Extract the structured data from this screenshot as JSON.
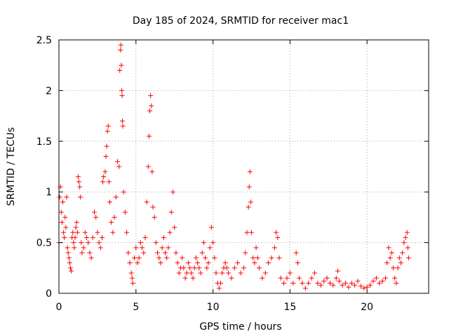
{
  "chart_data": {
    "type": "scatter",
    "title": "Day 185 of 2024, SRMTID for receiver mac1",
    "xlabel": "GPS time / hours",
    "ylabel": "SRMTID / TECUs",
    "xlim": [
      0,
      24
    ],
    "ylim": [
      0,
      2.5
    ],
    "xticks": [
      0,
      5,
      10,
      15,
      20
    ],
    "xtick_labels": [
      "0",
      "5",
      "10",
      "15",
      "20"
    ],
    "yticks": [
      0,
      0.5,
      1,
      1.5,
      2,
      2.5
    ],
    "ytick_labels": [
      "0",
      "0.5",
      "1",
      "1.5",
      "2",
      "2.5"
    ],
    "grid": true,
    "marker": "plus",
    "series_color": "#ff0000",
    "series": [
      {
        "name": "mac1",
        "points": [
          [
            0.0,
            0.5
          ],
          [
            0.05,
            0.95
          ],
          [
            0.1,
            1.05
          ],
          [
            0.15,
            0.8
          ],
          [
            0.2,
            0.7
          ],
          [
            0.25,
            0.9
          ],
          [
            0.3,
            0.6
          ],
          [
            0.35,
            0.55
          ],
          [
            0.4,
            0.75
          ],
          [
            0.45,
            0.65
          ],
          [
            0.5,
            0.95
          ],
          [
            0.55,
            0.45
          ],
          [
            0.6,
            0.4
          ],
          [
            0.65,
            0.35
          ],
          [
            0.7,
            0.3
          ],
          [
            0.75,
            0.25
          ],
          [
            0.8,
            0.22
          ],
          [
            0.85,
            0.55
          ],
          [
            0.9,
            0.6
          ],
          [
            0.95,
            0.5
          ],
          [
            1.0,
            0.45
          ],
          [
            1.05,
            0.55
          ],
          [
            1.1,
            0.65
          ],
          [
            1.15,
            0.7
          ],
          [
            1.2,
            0.6
          ],
          [
            1.25,
            1.15
          ],
          [
            1.3,
            1.1
          ],
          [
            1.35,
            1.05
          ],
          [
            1.4,
            0.95
          ],
          [
            1.45,
            0.5
          ],
          [
            1.5,
            0.4
          ],
          [
            1.6,
            0.45
          ],
          [
            1.7,
            0.6
          ],
          [
            1.8,
            0.55
          ],
          [
            1.9,
            0.5
          ],
          [
            2.0,
            0.4
          ],
          [
            2.1,
            0.35
          ],
          [
            2.2,
            0.55
          ],
          [
            2.3,
            0.8
          ],
          [
            2.4,
            0.75
          ],
          [
            2.5,
            0.6
          ],
          [
            2.6,
            0.5
          ],
          [
            2.7,
            0.45
          ],
          [
            2.8,
            0.55
          ],
          [
            2.85,
            1.1
          ],
          [
            2.9,
            1.15
          ],
          [
            3.0,
            1.2
          ],
          [
            3.05,
            1.35
          ],
          [
            3.1,
            1.45
          ],
          [
            3.15,
            1.6
          ],
          [
            3.2,
            1.65
          ],
          [
            3.25,
            1.1
          ],
          [
            3.3,
            0.9
          ],
          [
            3.4,
            0.7
          ],
          [
            3.5,
            0.6
          ],
          [
            3.6,
            0.75
          ],
          [
            3.7,
            0.95
          ],
          [
            3.8,
            1.3
          ],
          [
            3.9,
            1.25
          ],
          [
            3.95,
            2.2
          ],
          [
            4.0,
            2.4
          ],
          [
            4.02,
            2.45
          ],
          [
            4.05,
            2.25
          ],
          [
            4.08,
            2.0
          ],
          [
            4.1,
            1.95
          ],
          [
            4.12,
            1.7
          ],
          [
            4.15,
            1.65
          ],
          [
            4.2,
            1.0
          ],
          [
            4.3,
            0.8
          ],
          [
            4.4,
            0.6
          ],
          [
            4.5,
            0.4
          ],
          [
            4.6,
            0.3
          ],
          [
            4.7,
            0.2
          ],
          [
            4.75,
            0.15
          ],
          [
            4.8,
            0.1
          ],
          [
            4.9,
            0.35
          ],
          [
            5.0,
            0.45
          ],
          [
            5.1,
            0.3
          ],
          [
            5.2,
            0.35
          ],
          [
            5.3,
            0.5
          ],
          [
            5.4,
            0.45
          ],
          [
            5.5,
            0.4
          ],
          [
            5.6,
            0.55
          ],
          [
            5.7,
            0.9
          ],
          [
            5.8,
            1.25
          ],
          [
            5.85,
            1.55
          ],
          [
            5.9,
            1.8
          ],
          [
            5.95,
            1.95
          ],
          [
            6.0,
            1.85
          ],
          [
            6.05,
            1.2
          ],
          [
            6.1,
            0.85
          ],
          [
            6.2,
            0.75
          ],
          [
            6.3,
            0.5
          ],
          [
            6.4,
            0.4
          ],
          [
            6.5,
            0.35
          ],
          [
            6.6,
            0.3
          ],
          [
            6.7,
            0.45
          ],
          [
            6.8,
            0.55
          ],
          [
            6.9,
            0.4
          ],
          [
            7.0,
            0.35
          ],
          [
            7.1,
            0.45
          ],
          [
            7.2,
            0.6
          ],
          [
            7.3,
            0.8
          ],
          [
            7.4,
            1.0
          ],
          [
            7.5,
            0.65
          ],
          [
            7.6,
            0.4
          ],
          [
            7.7,
            0.3
          ],
          [
            7.8,
            0.2
          ],
          [
            7.9,
            0.25
          ],
          [
            8.0,
            0.35
          ],
          [
            8.1,
            0.25
          ],
          [
            8.2,
            0.15
          ],
          [
            8.3,
            0.2
          ],
          [
            8.4,
            0.3
          ],
          [
            8.5,
            0.25
          ],
          [
            8.6,
            0.2
          ],
          [
            8.7,
            0.15
          ],
          [
            8.8,
            0.25
          ],
          [
            8.9,
            0.35
          ],
          [
            9.0,
            0.3
          ],
          [
            9.1,
            0.25
          ],
          [
            9.2,
            0.2
          ],
          [
            9.3,
            0.4
          ],
          [
            9.4,
            0.5
          ],
          [
            9.5,
            0.35
          ],
          [
            9.6,
            0.25
          ],
          [
            9.7,
            0.3
          ],
          [
            9.8,
            0.45
          ],
          [
            9.9,
            0.65
          ],
          [
            10.0,
            0.5
          ],
          [
            10.1,
            0.35
          ],
          [
            10.2,
            0.2
          ],
          [
            10.3,
            0.1
          ],
          [
            10.4,
            0.05
          ],
          [
            10.5,
            0.1
          ],
          [
            10.6,
            0.2
          ],
          [
            10.7,
            0.25
          ],
          [
            10.8,
            0.3
          ],
          [
            10.9,
            0.25
          ],
          [
            11.0,
            0.2
          ],
          [
            11.2,
            0.15
          ],
          [
            11.4,
            0.25
          ],
          [
            11.6,
            0.3
          ],
          [
            11.8,
            0.2
          ],
          [
            12.0,
            0.25
          ],
          [
            12.1,
            0.4
          ],
          [
            12.2,
            0.6
          ],
          [
            12.3,
            0.85
          ],
          [
            12.35,
            1.05
          ],
          [
            12.4,
            1.2
          ],
          [
            12.45,
            0.9
          ],
          [
            12.5,
            0.6
          ],
          [
            12.6,
            0.35
          ],
          [
            12.7,
            0.3
          ],
          [
            12.8,
            0.45
          ],
          [
            12.9,
            0.35
          ],
          [
            13.0,
            0.25
          ],
          [
            13.2,
            0.15
          ],
          [
            13.4,
            0.2
          ],
          [
            13.6,
            0.3
          ],
          [
            13.8,
            0.35
          ],
          [
            14.0,
            0.45
          ],
          [
            14.1,
            0.6
          ],
          [
            14.2,
            0.55
          ],
          [
            14.3,
            0.35
          ],
          [
            14.4,
            0.15
          ],
          [
            14.6,
            0.1
          ],
          [
            14.8,
            0.15
          ],
          [
            15.0,
            0.2
          ],
          [
            15.2,
            0.1
          ],
          [
            15.4,
            0.4
          ],
          [
            15.5,
            0.3
          ],
          [
            15.6,
            0.15
          ],
          [
            15.8,
            0.1
          ],
          [
            16.0,
            0.05
          ],
          [
            16.2,
            0.1
          ],
          [
            16.4,
            0.15
          ],
          [
            16.6,
            0.2
          ],
          [
            16.8,
            0.1
          ],
          [
            17.0,
            0.08
          ],
          [
            17.2,
            0.12
          ],
          [
            17.4,
            0.15
          ],
          [
            17.6,
            0.1
          ],
          [
            17.8,
            0.08
          ],
          [
            18.0,
            0.15
          ],
          [
            18.1,
            0.22
          ],
          [
            18.2,
            0.12
          ],
          [
            18.4,
            0.08
          ],
          [
            18.6,
            0.1
          ],
          [
            18.8,
            0.06
          ],
          [
            19.0,
            0.1
          ],
          [
            19.2,
            0.08
          ],
          [
            19.4,
            0.12
          ],
          [
            19.6,
            0.07
          ],
          [
            19.8,
            0.05
          ],
          [
            20.0,
            0.06
          ],
          [
            20.2,
            0.08
          ],
          [
            20.4,
            0.12
          ],
          [
            20.6,
            0.15
          ],
          [
            20.8,
            0.1
          ],
          [
            21.0,
            0.12
          ],
          [
            21.2,
            0.15
          ],
          [
            21.3,
            0.3
          ],
          [
            21.4,
            0.45
          ],
          [
            21.5,
            0.35
          ],
          [
            21.6,
            0.4
          ],
          [
            21.7,
            0.25
          ],
          [
            21.8,
            0.15
          ],
          [
            21.9,
            0.1
          ],
          [
            22.0,
            0.25
          ],
          [
            22.1,
            0.35
          ],
          [
            22.2,
            0.3
          ],
          [
            22.3,
            0.4
          ],
          [
            22.4,
            0.5
          ],
          [
            22.5,
            0.55
          ],
          [
            22.6,
            0.6
          ],
          [
            22.65,
            0.45
          ],
          [
            22.7,
            0.35
          ]
        ]
      }
    ]
  }
}
